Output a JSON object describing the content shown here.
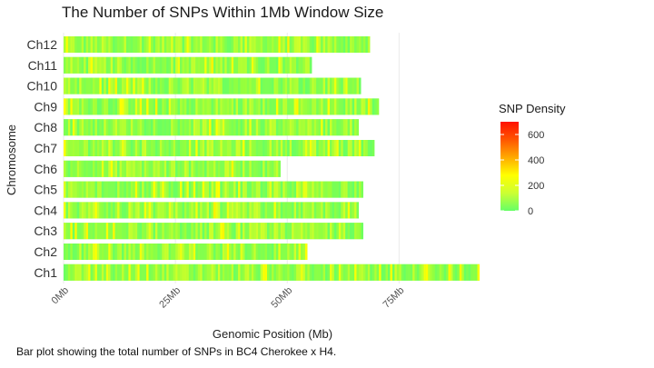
{
  "title": "The Number of SNPs Within 1Mb Window Size",
  "caption": "Bar plot showing the total number of SNPs in BC4 Cherokee x H4.",
  "chart_data": {
    "type": "heatmap",
    "title": "The Number of SNPs Within 1Mb Window Size",
    "xlabel": "Genomic Position (Mb)",
    "ylabel": "Chromosome",
    "x_ticks": [
      {
        "value": 0,
        "label": "0Mb"
      },
      {
        "value": 25,
        "label": "25Mb"
      },
      {
        "value": 50,
        "label": "50Mb"
      },
      {
        "value": 75,
        "label": "75Mb"
      }
    ],
    "xlim": [
      0,
      93
    ],
    "chromosomes": [
      {
        "name": "Ch12",
        "length_mb": 68.5
      },
      {
        "name": "Ch11",
        "length_mb": 55.5
      },
      {
        "name": "Ch10",
        "length_mb": 66.5
      },
      {
        "name": "Ch9",
        "length_mb": 70.5
      },
      {
        "name": "Ch8",
        "length_mb": 66.0
      },
      {
        "name": "Ch7",
        "length_mb": 69.5
      },
      {
        "name": "Ch6",
        "length_mb": 48.5
      },
      {
        "name": "Ch5",
        "length_mb": 67.0
      },
      {
        "name": "Ch4",
        "length_mb": 66.0
      },
      {
        "name": "Ch3",
        "length_mb": 67.0
      },
      {
        "name": "Ch2",
        "length_mb": 54.5
      },
      {
        "name": "Ch1",
        "length_mb": 93.0
      }
    ],
    "window_size_mb": 1,
    "legend": {
      "title": "SNP Density",
      "ticks": [
        0,
        200,
        400,
        600
      ],
      "range": [
        0,
        700
      ],
      "colors": [
        "#66ff66",
        "#ccff33",
        "#ffff00",
        "#ffaa00",
        "#ff5500",
        "#ff1100"
      ],
      "placement": "right"
    },
    "grid": true,
    "approx_typical_density": "mostly 0-200 per 1Mb window"
  }
}
